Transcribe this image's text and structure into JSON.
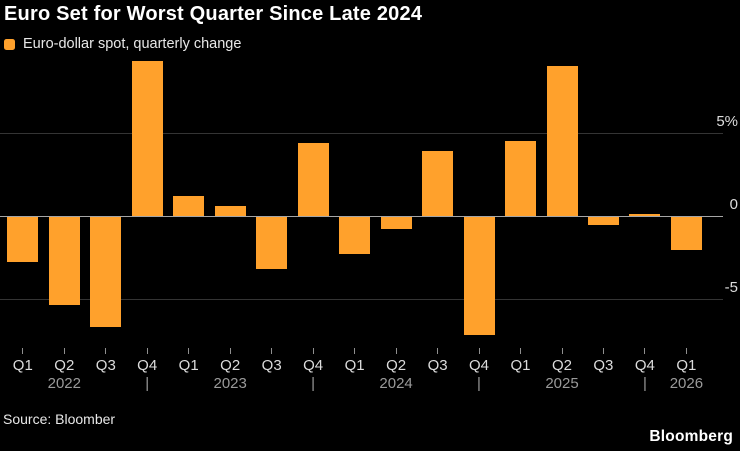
{
  "header": {
    "title": "Euro Set for Worst Quarter Since Late 2024"
  },
  "legend": {
    "label": "Euro-dollar spot, quarterly change"
  },
  "footer": {
    "source": "Source: Bloomber",
    "logo": "Bloomberg"
  },
  "chart_data": {
    "type": "bar",
    "title": "Euro Set for Worst Quarter Since Late 2024",
    "series_name": "Euro-dollar spot, quarterly change",
    "unit": "%",
    "categories": [
      "Q1",
      "Q2",
      "Q3",
      "Q4",
      "Q1",
      "Q2",
      "Q3",
      "Q4",
      "Q1",
      "Q2",
      "Q3",
      "Q4",
      "Q1",
      "Q2",
      "Q3",
      "Q4",
      "Q1"
    ],
    "quarters": [
      "Q1 2022",
      "Q2 2022",
      "Q3 2022",
      "Q4 2022",
      "Q1 2023",
      "Q2 2023",
      "Q3 2023",
      "Q4 2023",
      "Q1 2024",
      "Q2 2024",
      "Q3 2024",
      "Q4 2024",
      "Q1 2025",
      "Q2 2025",
      "Q3 2025",
      "Q4 2025",
      "Q1 2026"
    ],
    "values": [
      -2.7,
      -5.3,
      -6.6,
      9.3,
      1.2,
      0.6,
      -3.1,
      4.4,
      -2.2,
      -0.7,
      3.9,
      -7.1,
      4.5,
      9.0,
      -0.5,
      0.15,
      -2.0
    ],
    "years": [
      {
        "label": "2022",
        "quarters": 4
      },
      {
        "label": "2023",
        "quarters": 4
      },
      {
        "label": "2024",
        "quarters": 4
      },
      {
        "label": "2025",
        "quarters": 4
      },
      {
        "label": "2026",
        "quarters": 1
      }
    ],
    "year_separator": "|",
    "y_ticks": [
      {
        "value": 5,
        "label": "5%"
      },
      {
        "value": 0,
        "label": "0"
      },
      {
        "value": -5,
        "label": "-5"
      }
    ],
    "ylim": [
      -7.6,
      9.4
    ],
    "grid": "horizontal",
    "legend_position": "top-left",
    "bar_color": "#FFA12C",
    "grid_color": "#343434",
    "zero_line_color": "#a6a6a6",
    "tick_color": "#8f8f8f",
    "background_color": "#000000"
  }
}
